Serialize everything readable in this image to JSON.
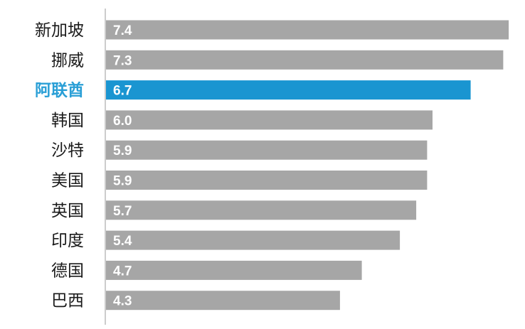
{
  "chart_data": {
    "type": "bar",
    "orientation": "horizontal",
    "categories": [
      "新加坡",
      "挪威",
      "阿联酋",
      "韩国",
      "沙特",
      "美国",
      "英国",
      "印度",
      "德国",
      "巴西"
    ],
    "values": [
      7.4,
      7.3,
      6.7,
      6.0,
      5.9,
      5.9,
      5.7,
      5.4,
      4.7,
      4.3
    ],
    "value_labels": [
      "7.4",
      "7.3",
      "6.7",
      "6.0",
      "5.9",
      "5.9",
      "5.7",
      "5.4",
      "4.7",
      "4.3"
    ],
    "highlight_index": 2,
    "title": "",
    "xlabel": "",
    "ylabel": "",
    "xlim": [
      0,
      7.5
    ],
    "grid": false,
    "legend": "none",
    "colors": {
      "bar": "#a6a6a6",
      "highlight_bar": "#1a95d1",
      "label_text": "#1a1a1a",
      "highlight_label_text": "#2a9fd6",
      "value_text": "#ffffff",
      "axis_line": "#9a9a9a"
    }
  }
}
